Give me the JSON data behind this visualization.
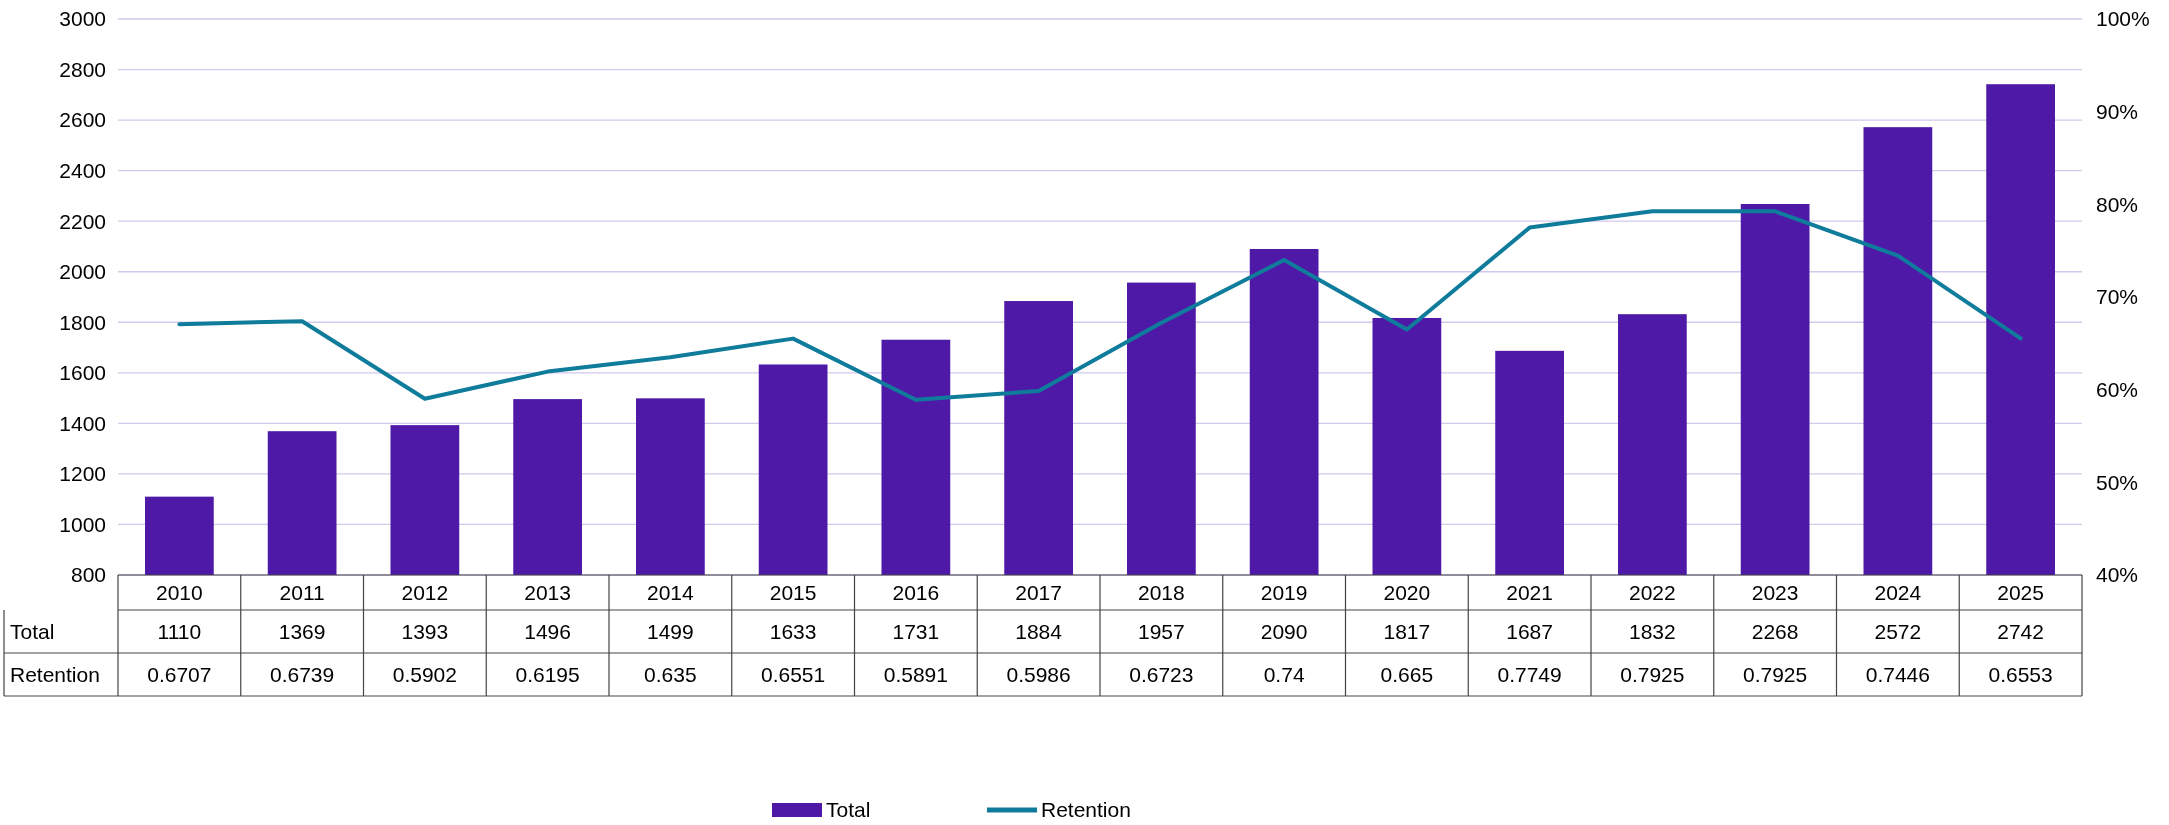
{
  "chart_data": {
    "type": "bar",
    "categories": [
      "2010",
      "2011",
      "2012",
      "2013",
      "2014",
      "2015",
      "2016",
      "2017",
      "2018",
      "2019",
      "2020",
      "2021",
      "2022",
      "2023",
      "2024",
      "2025"
    ],
    "series": [
      {
        "name": "Total",
        "color": "#4f19a8",
        "values": [
          1110,
          1369,
          1393,
          1496,
          1499,
          1633,
          1731,
          1884,
          1957,
          2090,
          1817,
          1687,
          1832,
          2268,
          2572,
          2742
        ]
      },
      {
        "name": "Retention",
        "type": "line",
        "axis": "y2",
        "color": "#107c9c",
        "values": [
          0.6707,
          0.6739,
          0.5902,
          0.6195,
          0.635,
          0.6551,
          0.5891,
          0.5986,
          0.6723,
          0.74,
          0.665,
          0.7749,
          0.7925,
          0.7925,
          0.7446,
          0.6553
        ]
      }
    ],
    "ylim": [
      800,
      3000
    ],
    "yticks": [
      800,
      1000,
      1200,
      1400,
      1600,
      1800,
      2000,
      2200,
      2400,
      2600,
      2800,
      3000
    ],
    "y2lim": [
      0.4,
      1.0
    ],
    "y2ticks": [
      {
        "value": 0.4,
        "label": "40%"
      },
      {
        "value": 0.5,
        "label": "50%"
      },
      {
        "value": 0.6,
        "label": "60%"
      },
      {
        "value": 0.7,
        "label": "70%"
      },
      {
        "value": 0.8,
        "label": "80%"
      },
      {
        "value": 0.9,
        "label": "90%"
      },
      {
        "value": 1.0,
        "label": "100%"
      }
    ],
    "grid": "y",
    "legend": "bottom",
    "data_labels": true
  }
}
